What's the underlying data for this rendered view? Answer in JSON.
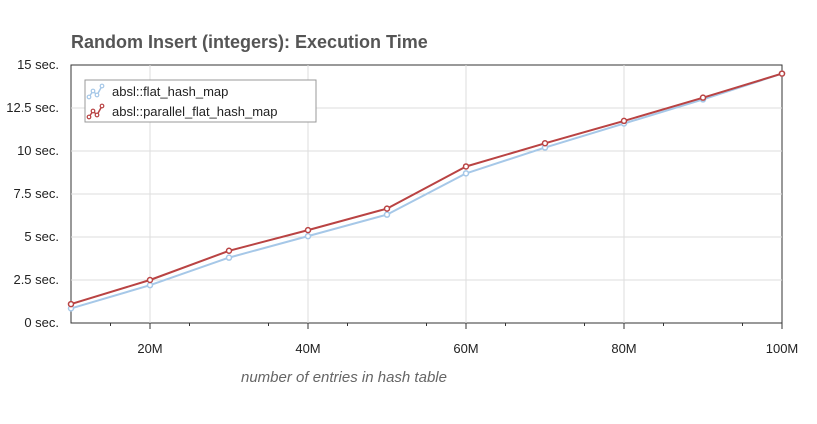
{
  "chart_data": {
    "type": "line",
    "title": "Random Insert (integers): Execution Time",
    "xlabel": "number of entries in hash table",
    "ylabel": "",
    "x": [
      10,
      20,
      30,
      40,
      50,
      60,
      70,
      80,
      90,
      100
    ],
    "xlim": [
      10,
      100
    ],
    "ylim": [
      0,
      15
    ],
    "x_ticks": [
      {
        "value": 20,
        "label": "20M"
      },
      {
        "value": 40,
        "label": "40M"
      },
      {
        "value": 60,
        "label": "60M"
      },
      {
        "value": 80,
        "label": "80M"
      },
      {
        "value": 100,
        "label": "100M"
      }
    ],
    "y_ticks": [
      {
        "value": 0,
        "label": "0 sec."
      },
      {
        "value": 2.5,
        "label": "2.5 sec."
      },
      {
        "value": 5,
        "label": "5 sec."
      },
      {
        "value": 7.5,
        "label": "7.5 sec."
      },
      {
        "value": 10,
        "label": "10 sec."
      },
      {
        "value": 12.5,
        "label": "12.5 sec."
      },
      {
        "value": 15,
        "label": "15 sec."
      }
    ],
    "grid": true,
    "legend_position": "top-left",
    "series": [
      {
        "name": "absl::flat_hash_map",
        "color": "#a6c8e8",
        "values": [
          0.85,
          2.2,
          3.8,
          5.05,
          6.3,
          8.7,
          10.2,
          11.6,
          13.0,
          14.5
        ]
      },
      {
        "name": "absl::parallel_flat_hash_map",
        "color": "#b94343",
        "values": [
          1.1,
          2.5,
          4.2,
          5.4,
          6.65,
          9.1,
          10.45,
          11.75,
          13.1,
          14.5
        ]
      }
    ]
  }
}
